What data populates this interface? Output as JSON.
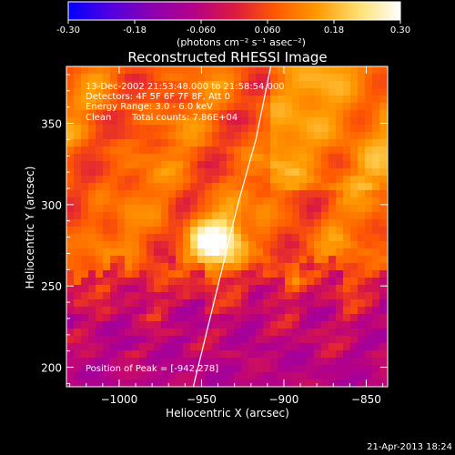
{
  "colorbar": {
    "ticks": [
      "-0.30",
      "-0.18",
      "-0.060",
      "0.060",
      "0.18",
      "0.30"
    ],
    "tick_values": [
      -0.3,
      -0.18,
      -0.06,
      0.06,
      0.18,
      0.3
    ],
    "range": [
      -0.3,
      0.3
    ],
    "units_label": "(photons cm⁻² s⁻¹ asec⁻²)",
    "colormap": [
      "#0000ff",
      "#5000e0",
      "#8a00b0",
      "#b4008a",
      "#dc1a40",
      "#ff5a00",
      "#ff9a00",
      "#ffe070",
      "#ffffff"
    ]
  },
  "header": {
    "title": "Reconstructed RHESSI Image"
  },
  "annotations": {
    "time_range": "13-Dec-2002 21:53:48.000 to 21:58:54.000",
    "detectors": "Detectors: 4F 5F 6F 7F 8F, Att 0",
    "energy": "Energy Range: 3.0 - 6.0 keV",
    "clean": "Clean",
    "total_counts": "Total counts: 7.86E+04",
    "peak": "Position of Peak = [-942,278]"
  },
  "footer": {
    "timestamp": "21-Apr-2013 18:24"
  },
  "chart_data": {
    "type": "heatmap",
    "title": "Reconstructed RHESSI Image",
    "xlabel": "Heliocentric X (arcsec)",
    "ylabel": "Heliocentric Y (arcsec)",
    "xlim": [
      -1032,
      -837
    ],
    "ylim": [
      188,
      385
    ],
    "x_ticks": [
      -1000,
      -950,
      -900,
      -850
    ],
    "x_tick_labels": [
      "−1000",
      "−950",
      "−900",
      "−850"
    ],
    "y_ticks": [
      200,
      250,
      300,
      350
    ],
    "y_tick_labels": [
      "200",
      "250",
      "300",
      "350"
    ],
    "peak_position": [
      -942,
      278
    ],
    "limb_line": [
      [
        -955,
        188
      ],
      [
        -940,
        250
      ],
      [
        -928,
        300
      ],
      [
        -917,
        340
      ],
      [
        -908,
        385
      ]
    ]
  }
}
